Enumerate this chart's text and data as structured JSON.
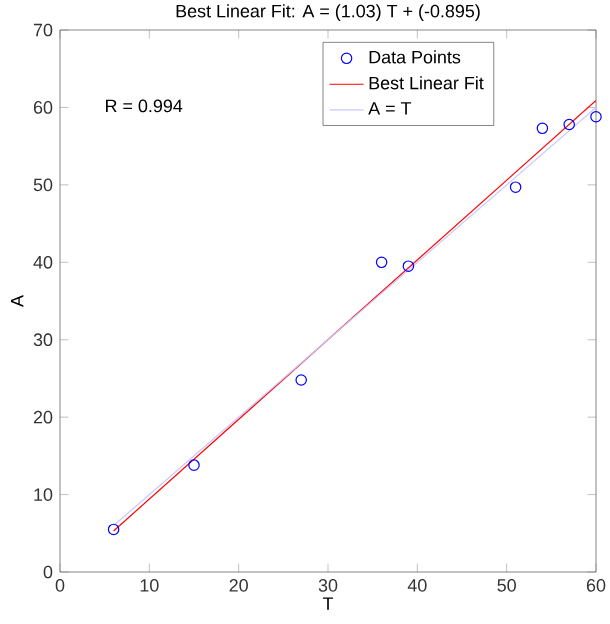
{
  "chart_data": {
    "type": "scatter",
    "title": "Best Linear Fit:  A = (1.03) T + (-0.895)",
    "xlabel": "T",
    "ylabel": "A",
    "annotations": [
      "R = 0.994"
    ],
    "xlim": [
      0,
      60
    ],
    "ylim": [
      0,
      70
    ],
    "xticks": [
      0,
      10,
      20,
      30,
      40,
      50,
      60
    ],
    "yticks": [
      0,
      10,
      20,
      30,
      40,
      50,
      60,
      70
    ],
    "grid": false,
    "legend": "top right",
    "marker": "circle",
    "series": [
      {
        "name": "Data Points",
        "color": "#0000ff",
        "x": [
          6,
          15,
          27,
          36,
          39,
          51,
          54,
          57,
          60
        ],
        "values": [
          5.5,
          13.8,
          24.8,
          40,
          39.5,
          49.7,
          57.3,
          57.8,
          58.8
        ]
      },
      {
        "name": "Best Linear Fit",
        "type": "line",
        "color": "#ff0000",
        "marker": "none",
        "line_style": "solid",
        "x": [
          6,
          60
        ],
        "values": [
          5.3,
          60.9
        ]
      },
      {
        "name": "A = T",
        "type": "line",
        "color": "#c8c8ff",
        "marker": "none",
        "line_style": "solid",
        "x": [
          6,
          60
        ],
        "values": [
          6,
          60
        ]
      }
    ]
  }
}
